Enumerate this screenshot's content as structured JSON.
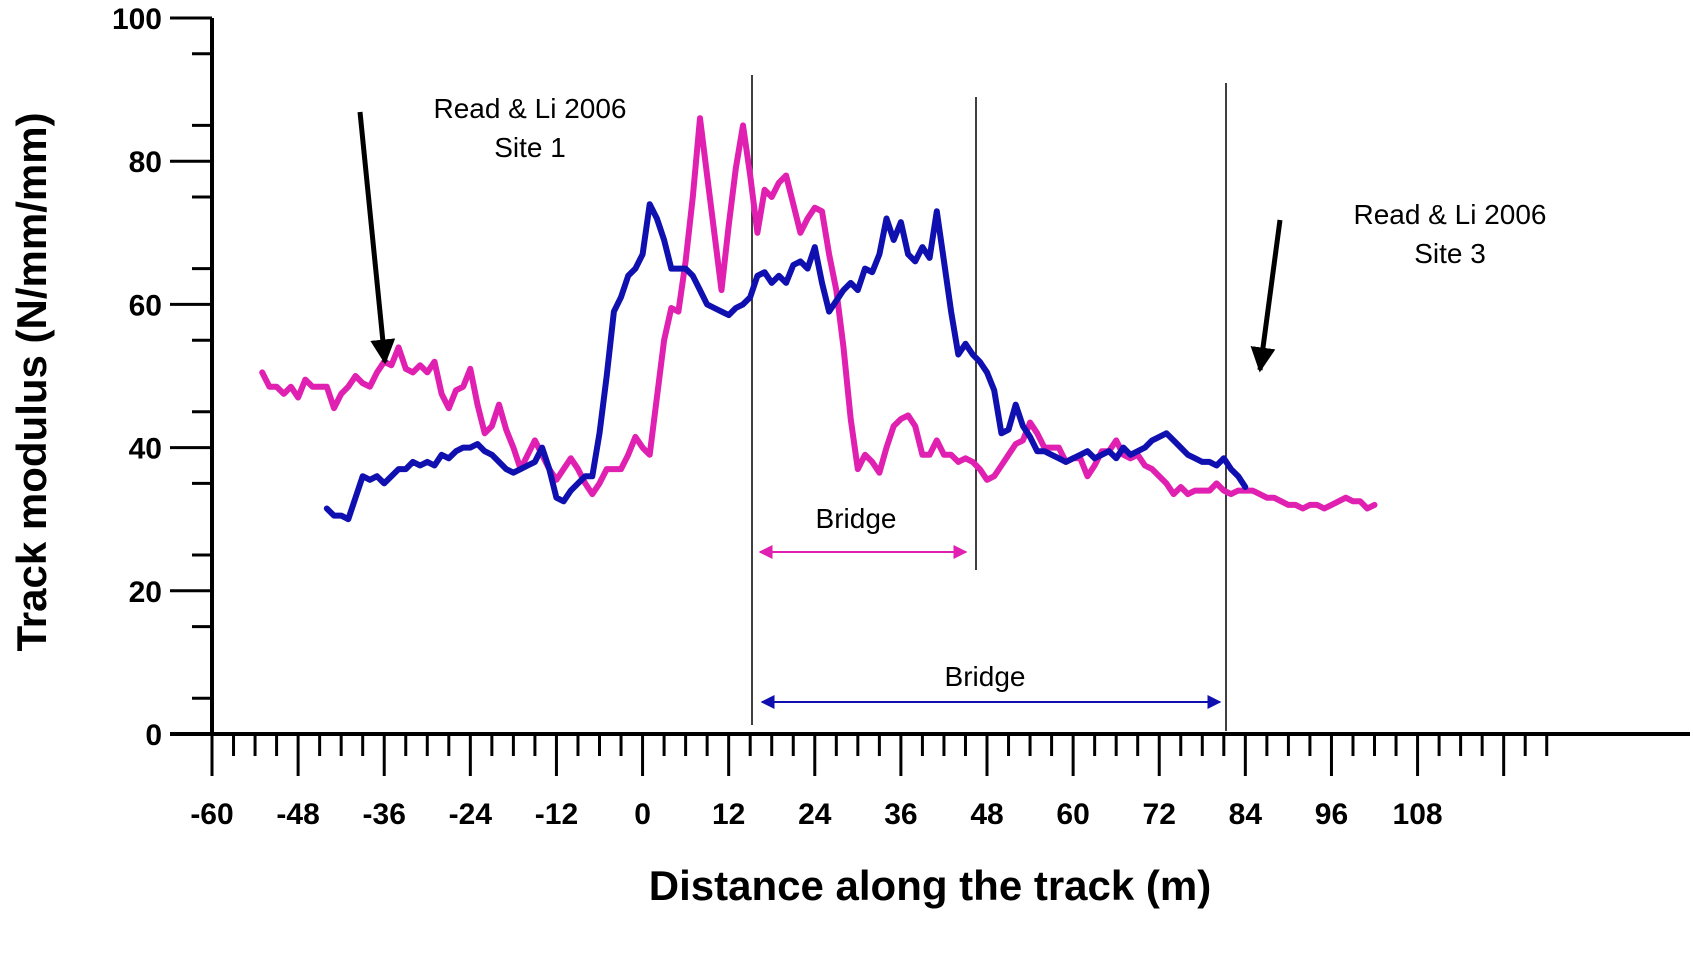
{
  "chart_data": {
    "type": "line",
    "title": "",
    "xlabel": "Distance along the track (m)",
    "ylabel": "Track modulus (N/mm/mm)",
    "xlim": [
      -60,
      128
    ],
    "ylim": [
      0,
      100
    ],
    "x_ticks": [
      -60,
      -48,
      -36,
      -24,
      -12,
      0,
      12,
      24,
      36,
      48,
      60,
      72,
      84,
      96,
      108
    ],
    "y_ticks": [
      0,
      20,
      40,
      60,
      80,
      100
    ],
    "grid": false,
    "series": [
      {
        "color": "#e020b0",
        "points": [
          [
            -53,
            50.5
          ],
          [
            -52,
            48.5
          ],
          [
            -51,
            48.5
          ],
          [
            -50,
            47.5
          ],
          [
            -49,
            48.5
          ],
          [
            -48,
            47
          ],
          [
            -47,
            49.5
          ],
          [
            -46,
            48.5
          ],
          [
            -45,
            48.5
          ],
          [
            -44,
            48.5
          ],
          [
            -43,
            45.5
          ],
          [
            -42,
            47.5
          ],
          [
            -41,
            48.5
          ],
          [
            -40,
            50
          ],
          [
            -39,
            49
          ],
          [
            -38,
            48.5
          ],
          [
            -37,
            50.5
          ],
          [
            -36,
            52
          ],
          [
            -35,
            51.5
          ],
          [
            -34,
            54
          ],
          [
            -33,
            51
          ],
          [
            -32,
            50.5
          ],
          [
            -31,
            51.5
          ],
          [
            -30,
            50.5
          ],
          [
            -29,
            52
          ],
          [
            -28,
            47.5
          ],
          [
            -27,
            45.5
          ],
          [
            -26,
            48
          ],
          [
            -25,
            48.5
          ],
          [
            -24,
            51
          ],
          [
            -23,
            46
          ],
          [
            -22,
            42
          ],
          [
            -21,
            43
          ],
          [
            -20,
            46
          ],
          [
            -19,
            42.5
          ],
          [
            -18,
            40
          ],
          [
            -17,
            37
          ],
          [
            -16,
            39
          ],
          [
            -15,
            41
          ],
          [
            -14,
            39
          ],
          [
            -13,
            37
          ],
          [
            -12,
            35.5
          ],
          [
            -11,
            37
          ],
          [
            -10,
            38.5
          ],
          [
            -9,
            37
          ],
          [
            -8,
            35
          ],
          [
            -7,
            33.5
          ],
          [
            -6,
            35
          ],
          [
            -5,
            37
          ],
          [
            -4,
            37
          ],
          [
            -3,
            37
          ],
          [
            -2,
            39
          ],
          [
            -1,
            41.5
          ],
          [
            0,
            40
          ],
          [
            1,
            39
          ],
          [
            2,
            47
          ],
          [
            3,
            55
          ],
          [
            4,
            59.5
          ],
          [
            5,
            59
          ],
          [
            6,
            66
          ],
          [
            7,
            75
          ],
          [
            8,
            86
          ],
          [
            9,
            78
          ],
          [
            10,
            70
          ],
          [
            11,
            62
          ],
          [
            12,
            71
          ],
          [
            13,
            79
          ],
          [
            14,
            85
          ],
          [
            15,
            78
          ],
          [
            16,
            70
          ],
          [
            17,
            76
          ],
          [
            18,
            75
          ],
          [
            19,
            77
          ],
          [
            20,
            78
          ],
          [
            21,
            74
          ],
          [
            22,
            70
          ],
          [
            23,
            72
          ],
          [
            24,
            73.5
          ],
          [
            25,
            73
          ],
          [
            26,
            67
          ],
          [
            27,
            62
          ],
          [
            28,
            54
          ],
          [
            29,
            44
          ],
          [
            30,
            37
          ],
          [
            31,
            39
          ],
          [
            32,
            38
          ],
          [
            33,
            36.5
          ],
          [
            34,
            40
          ],
          [
            35,
            43
          ],
          [
            36,
            44
          ],
          [
            37,
            44.5
          ],
          [
            38,
            43
          ],
          [
            39,
            39
          ],
          [
            40,
            39
          ],
          [
            41,
            41
          ],
          [
            42,
            39
          ],
          [
            43,
            39
          ],
          [
            44,
            38
          ],
          [
            45,
            38.5
          ],
          [
            46,
            38
          ],
          [
            47,
            37
          ],
          [
            48,
            35.5
          ],
          [
            49,
            36
          ],
          [
            50,
            37.5
          ],
          [
            51,
            39
          ],
          [
            52,
            40.5
          ],
          [
            53,
            41
          ],
          [
            54,
            43.5
          ],
          [
            55,
            42
          ],
          [
            56,
            40
          ],
          [
            57,
            40
          ],
          [
            58,
            40
          ],
          [
            59,
            38
          ],
          [
            60,
            38.5
          ],
          [
            61,
            38.5
          ],
          [
            62,
            36
          ],
          [
            63,
            37.5
          ],
          [
            64,
            39.5
          ],
          [
            65,
            39.5
          ],
          [
            66,
            41
          ],
          [
            67,
            39
          ],
          [
            68,
            38.5
          ],
          [
            69,
            39
          ],
          [
            70,
            37.5
          ],
          [
            71,
            37
          ],
          [
            72,
            36
          ],
          [
            73,
            35
          ],
          [
            74,
            33.5
          ],
          [
            75,
            34.5
          ],
          [
            76,
            33.5
          ],
          [
            77,
            34
          ],
          [
            78,
            34
          ],
          [
            79,
            34
          ],
          [
            80,
            35
          ],
          [
            81,
            34
          ],
          [
            82,
            33.5
          ],
          [
            83,
            34
          ],
          [
            84,
            34
          ],
          [
            85,
            34
          ],
          [
            86,
            33.5
          ],
          [
            87,
            33
          ],
          [
            88,
            33
          ],
          [
            89,
            32.5
          ],
          [
            90,
            32
          ],
          [
            91,
            32
          ],
          [
            92,
            31.5
          ],
          [
            93,
            32
          ],
          [
            94,
            32
          ],
          [
            95,
            31.5
          ],
          [
            96,
            32
          ],
          [
            97,
            32.5
          ],
          [
            98,
            33
          ],
          [
            99,
            32.5
          ],
          [
            100,
            32.5
          ],
          [
            101,
            31.5
          ],
          [
            102,
            32
          ]
        ]
      },
      {
        "color": "#1010b0",
        "points": [
          [
            -44,
            31.5
          ],
          [
            -43,
            30.5
          ],
          [
            -42,
            30.5
          ],
          [
            -41,
            30
          ],
          [
            -40,
            33
          ],
          [
            -39,
            36
          ],
          [
            -38,
            35.5
          ],
          [
            -37,
            36
          ],
          [
            -36,
            35
          ],
          [
            -35,
            36
          ],
          [
            -34,
            37
          ],
          [
            -33,
            37
          ],
          [
            -32,
            38
          ],
          [
            -31,
            37.5
          ],
          [
            -30,
            38
          ],
          [
            -29,
            37.5
          ],
          [
            -28,
            39
          ],
          [
            -27,
            38.5
          ],
          [
            -26,
            39.5
          ],
          [
            -25,
            40
          ],
          [
            -24,
            40
          ],
          [
            -23,
            40.5
          ],
          [
            -22,
            39.5
          ],
          [
            -21,
            39
          ],
          [
            -20,
            38
          ],
          [
            -19,
            37
          ],
          [
            -18,
            36.5
          ],
          [
            -17,
            37
          ],
          [
            -16,
            37.5
          ],
          [
            -15,
            38
          ],
          [
            -14,
            40
          ],
          [
            -13,
            37
          ],
          [
            -12,
            33
          ],
          [
            -11,
            32.5
          ],
          [
            -10,
            34
          ],
          [
            -9,
            35
          ],
          [
            -8,
            36
          ],
          [
            -7,
            36
          ],
          [
            -6,
            42
          ],
          [
            -5,
            50
          ],
          [
            -4,
            59
          ],
          [
            -3,
            61
          ],
          [
            -2,
            64
          ],
          [
            -1,
            65
          ],
          [
            0,
            67
          ],
          [
            1,
            74
          ],
          [
            2,
            72
          ],
          [
            3,
            69
          ],
          [
            4,
            65
          ],
          [
            5,
            65
          ],
          [
            6,
            65
          ],
          [
            7,
            64
          ],
          [
            8,
            62
          ],
          [
            9,
            60
          ],
          [
            10,
            59.5
          ],
          [
            11,
            59
          ],
          [
            12,
            58.5
          ],
          [
            13,
            59.5
          ],
          [
            14,
            60
          ],
          [
            15,
            61
          ],
          [
            16,
            64
          ],
          [
            17,
            64.5
          ],
          [
            18,
            63
          ],
          [
            19,
            64
          ],
          [
            20,
            63
          ],
          [
            21,
            65.5
          ],
          [
            22,
            66
          ],
          [
            23,
            65
          ],
          [
            24,
            68
          ],
          [
            25,
            63
          ],
          [
            26,
            59
          ],
          [
            27,
            60.5
          ],
          [
            28,
            62
          ],
          [
            29,
            63
          ],
          [
            30,
            62
          ],
          [
            31,
            65
          ],
          [
            32,
            64.5
          ],
          [
            33,
            67
          ],
          [
            34,
            72
          ],
          [
            35,
            69
          ],
          [
            36,
            71.5
          ],
          [
            37,
            67
          ],
          [
            38,
            66
          ],
          [
            39,
            68
          ],
          [
            40,
            66.5
          ],
          [
            41,
            73
          ],
          [
            42,
            66
          ],
          [
            43,
            59
          ],
          [
            44,
            53
          ],
          [
            45,
            54.5
          ],
          [
            46,
            53
          ],
          [
            47,
            52
          ],
          [
            48,
            50.5
          ],
          [
            49,
            48
          ],
          [
            50,
            42
          ],
          [
            51,
            42.5
          ],
          [
            52,
            46
          ],
          [
            53,
            43
          ],
          [
            54,
            41.5
          ],
          [
            55,
            39.5
          ],
          [
            56,
            39.5
          ],
          [
            57,
            39
          ],
          [
            58,
            38.5
          ],
          [
            59,
            38
          ],
          [
            60,
            38.5
          ],
          [
            61,
            39
          ],
          [
            62,
            39.5
          ],
          [
            63,
            38.5
          ],
          [
            64,
            39
          ],
          [
            65,
            39.5
          ],
          [
            66,
            38.5
          ],
          [
            67,
            40
          ],
          [
            68,
            39
          ],
          [
            69,
            39.5
          ],
          [
            70,
            40
          ],
          [
            71,
            41
          ],
          [
            72,
            41.5
          ],
          [
            73,
            42
          ],
          [
            74,
            41
          ],
          [
            75,
            40
          ],
          [
            76,
            39
          ],
          [
            77,
            38.5
          ],
          [
            78,
            38
          ],
          [
            79,
            38
          ],
          [
            80,
            37.5
          ],
          [
            81,
            38.5
          ],
          [
            82,
            37
          ],
          [
            83,
            36
          ],
          [
            84,
            34.5
          ]
        ]
      }
    ],
    "annotations": {
      "site1_line1": "Read & Li 2006",
      "site1_line2": "Site 1",
      "site3_line1": "Read & Li 2006",
      "site3_line2": "Site 3",
      "bridge_magenta": "Bridge",
      "bridge_blue": "Bridge"
    }
  }
}
